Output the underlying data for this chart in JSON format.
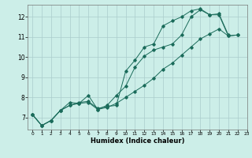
{
  "xlabel": "Humidex (Indice chaleur)",
  "background_color": "#cceee8",
  "grid_color": "#aacccc",
  "line_color": "#1a6b5a",
  "xlim": [
    -0.5,
    23
  ],
  "ylim": [
    6.4,
    12.6
  ],
  "xticks": [
    0,
    1,
    2,
    3,
    4,
    5,
    6,
    7,
    8,
    9,
    10,
    11,
    12,
    13,
    14,
    15,
    16,
    17,
    18,
    19,
    20,
    21,
    22,
    23
  ],
  "yticks": [
    7,
    8,
    9,
    10,
    11,
    12
  ],
  "series": [
    {
      "x": [
        0,
        1,
        2,
        3,
        4,
        5,
        6,
        7,
        8,
        9,
        10,
        11,
        12,
        13,
        14,
        15,
        16,
        17,
        18,
        19,
        20,
        21,
        22
      ],
      "y": [
        7.15,
        6.6,
        6.85,
        7.35,
        7.6,
        7.75,
        7.8,
        7.45,
        7.55,
        7.6,
        9.3,
        9.85,
        10.5,
        10.65,
        11.55,
        11.8,
        12.0,
        12.3,
        12.4,
        12.1,
        12.1,
        11.05,
        11.1
      ]
    },
    {
      "x": [
        0,
        1,
        2,
        3,
        4,
        5,
        6,
        7,
        8,
        9,
        10,
        11,
        12,
        13,
        14,
        15,
        16,
        17,
        18,
        19,
        20,
        21
      ],
      "y": [
        7.15,
        6.6,
        6.85,
        7.35,
        7.75,
        7.7,
        8.1,
        7.4,
        7.6,
        8.1,
        8.55,
        9.5,
        10.05,
        10.35,
        10.5,
        10.65,
        11.1,
        12.0,
        12.35,
        12.1,
        12.15,
        11.1
      ]
    },
    {
      "x": [
        0,
        1,
        2,
        3,
        4,
        5,
        6,
        7,
        8,
        9,
        10,
        11,
        12,
        13,
        14,
        15,
        16,
        17,
        18,
        19,
        20,
        21,
        22
      ],
      "y": [
        7.15,
        6.6,
        6.85,
        7.35,
        7.6,
        7.7,
        7.75,
        7.4,
        7.5,
        7.7,
        8.0,
        8.3,
        8.6,
        8.95,
        9.4,
        9.7,
        10.1,
        10.5,
        10.9,
        11.15,
        11.4,
        11.05,
        11.1
      ]
    }
  ]
}
